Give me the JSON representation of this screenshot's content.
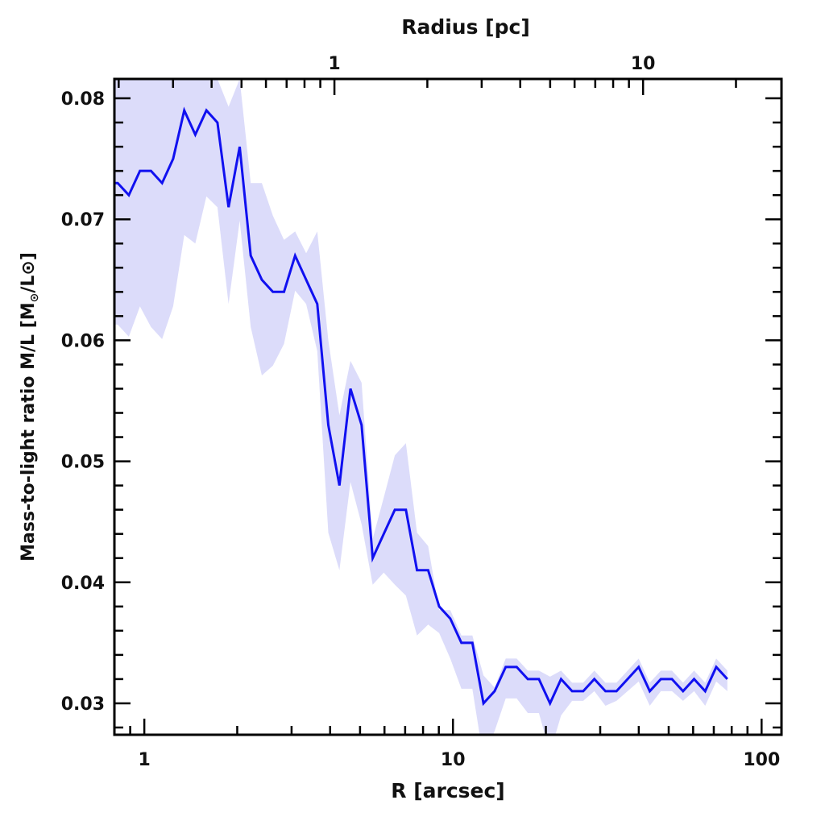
{
  "chart_data": {
    "type": "line",
    "title": "",
    "xlabel": "R [arcsec]",
    "top_xlabel": "Radius [pc]",
    "ylabel": "Mass-to-light ratio M/L [M",
    "ylabel_sub": "⊙",
    "ylabel_tail": "/L⊙]",
    "xscale": "log",
    "xlim": [
      0.8,
      116
    ],
    "ylim": [
      0.0274,
      0.0816
    ],
    "top_axis_scale_arcsec_per_pc": 4.13,
    "x_ticks": [
      {
        "v": 1,
        "label": "1"
      },
      {
        "v": 10,
        "label": "10"
      },
      {
        "v": 100,
        "label": "100"
      }
    ],
    "top_ticks": [
      {
        "v": 1,
        "label": "1"
      },
      {
        "v": 10,
        "label": "10"
      }
    ],
    "y_ticks": [
      {
        "v": 0.03,
        "label": "0.03"
      },
      {
        "v": 0.04,
        "label": "0.04"
      },
      {
        "v": 0.05,
        "label": "0.05"
      },
      {
        "v": 0.06,
        "label": "0.06"
      },
      {
        "v": 0.07,
        "label": "0.07"
      },
      {
        "v": 0.08,
        "label": "0.08"
      }
    ],
    "line_color": "#1010f0",
    "band_color": "#dcdcfa",
    "grid": false,
    "series": [
      {
        "name": "M/L",
        "x": [
          0.82,
          0.891,
          0.968,
          1.051,
          1.142,
          1.24,
          1.347,
          1.463,
          1.589,
          1.726,
          1.875,
          2.037,
          2.212,
          2.403,
          2.61,
          2.835,
          3.08,
          3.345,
          3.633,
          3.947,
          4.287,
          4.656,
          5.058,
          5.494,
          5.967,
          6.482,
          7.04,
          7.647,
          8.307,
          9.023,
          9.8,
          10.65,
          11.56,
          12.56,
          13.64,
          14.82,
          16.09,
          17.48,
          18.99,
          20.63,
          22.4,
          24.33,
          26.43,
          28.71,
          31.19,
          33.88,
          36.8,
          39.97,
          43.41,
          47.16,
          51.22,
          55.64,
          60.43,
          65.64,
          71.3,
          77.45
        ],
        "values": [
          0.073,
          0.072,
          0.074,
          0.074,
          0.073,
          0.075,
          0.079,
          0.077,
          0.079,
          0.078,
          0.071,
          0.076,
          0.067,
          0.065,
          0.064,
          0.064,
          0.067,
          0.065,
          0.063,
          0.053,
          0.048,
          0.056,
          0.053,
          0.042,
          0.044,
          0.046,
          0.046,
          0.041,
          0.041,
          0.038,
          0.037,
          0.035,
          0.035,
          0.03,
          0.031,
          0.033,
          0.033,
          0.032,
          0.032,
          0.03,
          0.032,
          0.031,
          0.031,
          0.032,
          0.031,
          0.031,
          0.032,
          0.033,
          0.031,
          0.032,
          0.032,
          0.031,
          0.032,
          0.031,
          0.033,
          0.032
        ],
        "lower": [
          0.0613,
          0.0603,
          0.0628,
          0.0611,
          0.0601,
          0.0628,
          0.0687,
          0.068,
          0.0719,
          0.071,
          0.063,
          0.0699,
          0.0611,
          0.0571,
          0.0579,
          0.0597,
          0.0641,
          0.063,
          0.0591,
          0.0441,
          0.041,
          0.0483,
          0.0448,
          0.0398,
          0.0408,
          0.0398,
          0.0389,
          0.0356,
          0.0365,
          0.0358,
          0.0337,
          0.0312,
          0.0312,
          0.0254,
          0.0277,
          0.0304,
          0.0304,
          0.0292,
          0.0292,
          0.0259,
          0.029,
          0.0302,
          0.0302,
          0.031,
          0.0298,
          0.0302,
          0.031,
          0.0318,
          0.0298,
          0.031,
          0.031,
          0.0302,
          0.031,
          0.0298,
          0.0318,
          0.031
        ],
        "upper": [
          0.0816,
          0.0816,
          0.0816,
          0.0816,
          0.0816,
          0.0816,
          0.0816,
          0.0816,
          0.0816,
          0.0816,
          0.0793,
          0.0816,
          0.073,
          0.073,
          0.0703,
          0.0683,
          0.069,
          0.0672,
          0.069,
          0.06,
          0.0538,
          0.0583,
          0.0565,
          0.0436,
          0.047,
          0.0505,
          0.0515,
          0.0441,
          0.043,
          0.0377,
          0.0377,
          0.0356,
          0.0356,
          0.0323,
          0.0313,
          0.0337,
          0.0337,
          0.0327,
          0.0327,
          0.0322,
          0.0327,
          0.0317,
          0.0317,
          0.0327,
          0.0317,
          0.0317,
          0.0327,
          0.0337,
          0.0317,
          0.0327,
          0.0327,
          0.0317,
          0.0327,
          0.0317,
          0.0337,
          0.0327
        ]
      }
    ]
  }
}
